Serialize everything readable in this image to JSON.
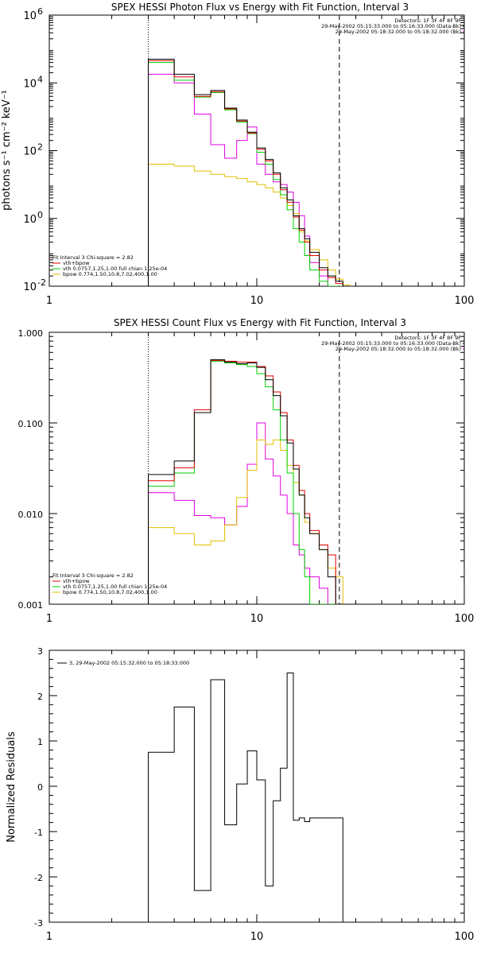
{
  "colors": {
    "background": "#ffffff",
    "data": "#000000",
    "total_model": "#e00000",
    "vth": "#00d000",
    "bpow": "#e0c000",
    "background_model": "#e000e0",
    "axes": "#000000"
  },
  "chart_data": [
    {
      "type": "line",
      "step": true,
      "title": "SPEX HESSI Photon Flux vs Energy with Fit Function, Interval 3",
      "xlabel": "",
      "ylabel": "photons s⁻¹ cm⁻² keV⁻¹",
      "xscale": "log",
      "yscale": "log",
      "xlim": [
        1,
        100
      ],
      "ylim": [
        0.01,
        1000000
      ],
      "xticks": [
        1,
        10,
        100
      ],
      "xtick_labels": [
        "1",
        "10",
        "100"
      ],
      "yticks": [
        0.01,
        1,
        100,
        10000,
        1000000
      ],
      "ytick_labels": [
        "10",
        "10",
        "10",
        "10",
        "10"
      ],
      "ytick_exps": [
        "-2",
        "0",
        "2",
        "4",
        "6"
      ],
      "vlines": [
        {
          "x": 3,
          "style": "dotted"
        },
        {
          "x": 25,
          "style": "dashed"
        }
      ],
      "header_lines": [
        "Detectors: 1F 3F 4F 8F 9F",
        "29-May-2002 05:15:33.000 to 05:16:33.000 (Data-Bk)",
        "29-May-2002 05:18:32.000 to 05:18:32.000 (Bk)"
      ],
      "fit_lines": [
        "Fit Interval 3    Chi-square = 2.82",
        "vth+bpow",
        "vth 0.0757,1.25,1.00  full chian 1.25e-04",
        "bpow 0.774,1.50,10.8,7.02,400,1.00"
      ],
      "edges": [
        3,
        4,
        5,
        6,
        7,
        8,
        9,
        10,
        11,
        12,
        13,
        14,
        15,
        16,
        17,
        18,
        20,
        22,
        24,
        26,
        28
      ],
      "series": [
        {
          "name": "Data-Bk",
          "color": "#000000",
          "values": [
            50000,
            18000,
            4500,
            6000,
            1800,
            800,
            350,
            120,
            55,
            22,
            8,
            3.5,
            1.2,
            0.5,
            0.25,
            0.1,
            0.035,
            0.02,
            0.014,
            0.01
          ]
        },
        {
          "name": "vth+bpow",
          "color": "#e00000",
          "values": [
            45000,
            15000,
            4000,
            5500,
            1700,
            750,
            330,
            110,
            50,
            20,
            7,
            3,
            1.1,
            0.45,
            0.2,
            0.08,
            0.03,
            0.018,
            0.012,
            0.01
          ]
        },
        {
          "name": "vth",
          "color": "#00d000",
          "values": [
            40000,
            12000,
            3800,
            5200,
            1600,
            700,
            320,
            90,
            40,
            14,
            5,
            1.8,
            0.5,
            0.2,
            0.08,
            0.03,
            0.014,
            0.01,
            0.01,
            0.01
          ]
        },
        {
          "name": "bpow",
          "color": "#e0c000",
          "values": [
            40,
            35,
            25,
            20,
            17,
            15,
            12,
            10,
            8,
            6,
            4,
            2.4,
            1.4,
            0.4,
            0.22,
            0.12,
            0.06,
            0.03,
            0.016,
            0.011
          ]
        },
        {
          "name": "Bk",
          "color": "#e000e0",
          "values": [
            18000,
            10000,
            1200,
            150,
            60,
            200,
            500,
            40,
            20,
            12,
            10,
            6,
            3,
            1.2,
            0.3,
            0.05,
            0.02,
            0.01,
            0.01,
            0.01
          ]
        }
      ]
    },
    {
      "type": "line",
      "step": true,
      "title": "SPEX HESSI Count Flux vs Energy with Fit Function, Interval 3",
      "xlabel": "",
      "ylabel": "",
      "xscale": "log",
      "yscale": "log",
      "xlim": [
        1,
        100
      ],
      "ylim": [
        0.001,
        1
      ],
      "xticks": [
        1,
        10,
        100
      ],
      "xtick_labels": [
        "1",
        "10",
        "100"
      ],
      "yticks": [
        0.001,
        0.01,
        0.1,
        1
      ],
      "ytick_labels": [
        "0.001",
        "0.010",
        "0.100",
        "1.000"
      ],
      "vlines": [
        {
          "x": 3,
          "style": "dotted"
        },
        {
          "x": 25,
          "style": "dashed"
        }
      ],
      "header_lines": [
        "Detectors: 1F 3F 4F 8F 9F",
        "29-May-2002 05:15:33.000 to 05:16:33.000 (Data-Bk)",
        "29-May-2002 05:18:32.000 to 05:18:32.000 (Bk)"
      ],
      "fit_lines": [
        "Fit Interval 3    Chi-square = 2.82",
        "vth+bpow",
        "vth 0.0757,1.25,1.00  full chian 1.25e-04",
        "bpow 0.774,1.50,10.8,7.02,400,1.00"
      ],
      "edges": [
        3,
        4,
        5,
        6,
        7,
        8,
        9,
        10,
        11,
        12,
        13,
        14,
        15,
        16,
        17,
        18,
        20,
        22,
        24,
        26,
        28
      ],
      "series": [
        {
          "name": "Data-Bk",
          "color": "#000000",
          "values": [
            0.027,
            0.038,
            0.13,
            0.5,
            0.47,
            0.45,
            0.46,
            0.41,
            0.3,
            0.2,
            0.12,
            0.06,
            0.031,
            0.016,
            0.009,
            0.006,
            0.004,
            0.002,
            0.001,
            0.001
          ]
        },
        {
          "name": "vth+bpow",
          "color": "#e00000",
          "values": [
            0.023,
            0.032,
            0.14,
            0.49,
            0.48,
            0.47,
            0.47,
            0.42,
            0.33,
            0.22,
            0.13,
            0.065,
            0.034,
            0.018,
            0.01,
            0.0065,
            0.0045,
            0.0035,
            0.001,
            0.001
          ]
        },
        {
          "name": "vth",
          "color": "#00d000",
          "values": [
            0.02,
            0.028,
            0.13,
            0.48,
            0.46,
            0.44,
            0.42,
            0.35,
            0.25,
            0.14,
            0.065,
            0.028,
            0.01,
            0.004,
            0.002,
            0.001,
            0.001,
            0.001,
            0.001,
            0.001
          ]
        },
        {
          "name": "bpow",
          "color": "#e0c000",
          "values": [
            0.007,
            0.006,
            0.0045,
            0.005,
            0.0075,
            0.015,
            0.03,
            0.065,
            0.058,
            0.065,
            0.05,
            0.034,
            0.022,
            0.016,
            0.008,
            0.006,
            0.004,
            0.0025,
            0.002,
            0.001
          ]
        },
        {
          "name": "Bk",
          "color": "#e000e0",
          "values": [
            0.017,
            0.014,
            0.0095,
            0.009,
            0.0075,
            0.012,
            0.035,
            0.1,
            0.04,
            0.026,
            0.016,
            0.01,
            0.0045,
            0.0035,
            0.0025,
            0.002,
            0.0015,
            0.001,
            0.001,
            0.001
          ]
        }
      ]
    },
    {
      "type": "line",
      "step": true,
      "title": "",
      "xlabel": "",
      "ylabel": "Normalized Residuals",
      "xscale": "log",
      "yscale": "linear",
      "xlim": [
        1,
        100
      ],
      "ylim": [
        -3,
        3
      ],
      "xticks": [
        1,
        10,
        100
      ],
      "xtick_labels": [
        "1",
        "10",
        "100"
      ],
      "yticks": [
        -3,
        -2,
        -1,
        0,
        1,
        2,
        3
      ],
      "ytick_labels": [
        "-3",
        "-2",
        "-1",
        "0",
        "1",
        "2",
        "3"
      ],
      "legend": "3, 29-May-2002 05:15:32.000 to 05:18:33.000",
      "edges": [
        3,
        4,
        5,
        6,
        7,
        8,
        9,
        10,
        11,
        12,
        13,
        14,
        15,
        16,
        17,
        18,
        20,
        22,
        24,
        26
      ],
      "series": [
        {
          "name": "",
          "color": "#000000",
          "values": [
            0.75,
            1.75,
            -2.3,
            2.35,
            -0.85,
            0.05,
            0.78,
            0.14,
            -2.2,
            -0.32,
            0.4,
            2.5,
            -0.75,
            -0.7,
            -0.78,
            -0.7,
            -0.7,
            -0.7,
            -0.7
          ]
        }
      ]
    }
  ]
}
